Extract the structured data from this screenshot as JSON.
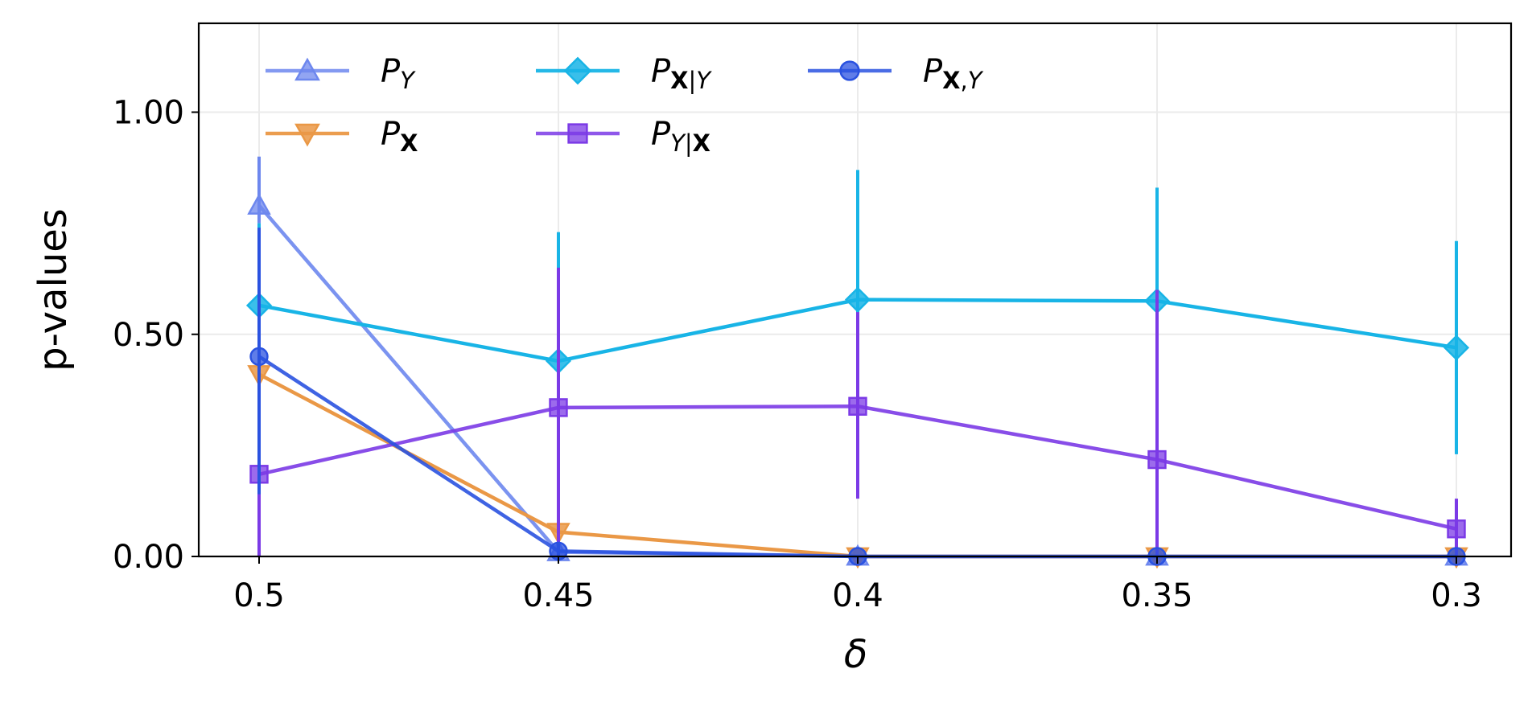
{
  "chart_data": {
    "type": "line",
    "xlabel": "δ",
    "ylabel": "p-values",
    "x": [
      0.5,
      0.45,
      0.4,
      0.35,
      0.3
    ],
    "x_tick_labels": [
      "0.5",
      "0.45",
      "0.4",
      "0.35",
      "0.3"
    ],
    "y_ticks": [
      0.0,
      0.5,
      1.0
    ],
    "y_tick_labels": [
      "0.00",
      "0.50",
      "1.00"
    ],
    "ylim": [
      0,
      1.2
    ],
    "grid": true,
    "legend_placement": "top-left",
    "series": [
      {
        "name": "P_Y",
        "label_parts": [
          {
            "t": "P",
            "style": "italic"
          },
          {
            "t": "Y",
            "style": "italic",
            "sub": true
          }
        ],
        "color": "#6d87ee",
        "marker": "triangle-up",
        "alpha": 0.75,
        "values": [
          0.79,
          0.01,
          0.0,
          0.0,
          0.0
        ],
        "err_low": [
          0.75,
          0.0,
          0.0,
          0.0,
          0.0
        ],
        "err_high": [
          0.9,
          0.0,
          0.0,
          0.0,
          0.0
        ]
      },
      {
        "name": "P_X",
        "label_parts": [
          {
            "t": "P",
            "style": "italic"
          },
          {
            "t": "X",
            "style": "bold",
            "sub": true
          }
        ],
        "color": "#ea9846",
        "marker": "triangle-down",
        "alpha": 0.85,
        "values": [
          0.41,
          0.055,
          0.0,
          0.0,
          0.0
        ],
        "err_low": [
          0.41,
          0.055,
          0.0,
          0.0,
          0.0
        ],
        "err_high": [
          0.41,
          0.055,
          0.0,
          0.0,
          0.0
        ]
      },
      {
        "name": "P_X|Y",
        "label_parts": [
          {
            "t": "P",
            "style": "italic"
          },
          {
            "t": "X",
            "style": "bold",
            "sub": true
          },
          {
            "t": "|",
            "style": "normal",
            "sub": true
          },
          {
            "t": "Y",
            "style": "italic",
            "sub": true
          }
        ],
        "color": "#18b4e6",
        "marker": "diamond",
        "alpha": 0.85,
        "values": [
          0.565,
          0.44,
          0.578,
          0.575,
          0.47
        ],
        "err_low": [
          0.38,
          0.3,
          0.28,
          0.3,
          0.23
        ],
        "err_high": [
          0.75,
          0.73,
          0.87,
          0.83,
          0.71
        ]
      },
      {
        "name": "P_Y|X",
        "label_parts": [
          {
            "t": "P",
            "style": "italic"
          },
          {
            "t": "Y",
            "style": "italic",
            "sub": true
          },
          {
            "t": "|",
            "style": "normal",
            "sub": true
          },
          {
            "t": "X",
            "style": "bold",
            "sub": true
          }
        ],
        "color": "#7b3ae6",
        "marker": "square",
        "alpha": 0.75,
        "values": [
          0.185,
          0.335,
          0.338,
          0.218,
          0.062
        ],
        "err_low": [
          0.0,
          0.01,
          0.13,
          0.0,
          0.0
        ],
        "err_high": [
          0.37,
          0.65,
          0.55,
          0.6,
          0.13
        ]
      },
      {
        "name": "P_X,Y",
        "label_parts": [
          {
            "t": "P",
            "style": "italic"
          },
          {
            "t": "X",
            "style": "bold",
            "sub": true
          },
          {
            "t": ",",
            "style": "normal",
            "sub": true
          },
          {
            "t": "Y",
            "style": "italic",
            "sub": true
          }
        ],
        "color": "#2a52e0",
        "marker": "circle",
        "alpha": 0.75,
        "values": [
          0.45,
          0.012,
          0.0,
          0.0,
          0.0
        ],
        "err_low": [
          0.14,
          0.0,
          0.0,
          0.0,
          0.0
        ],
        "err_high": [
          0.74,
          0.03,
          0.0,
          0.0,
          0.0
        ]
      }
    ],
    "legend_layout": [
      [
        "P_Y",
        "P_X"
      ],
      [
        "P_X|Y",
        "P_Y|X"
      ],
      [
        "P_X,Y"
      ]
    ]
  }
}
